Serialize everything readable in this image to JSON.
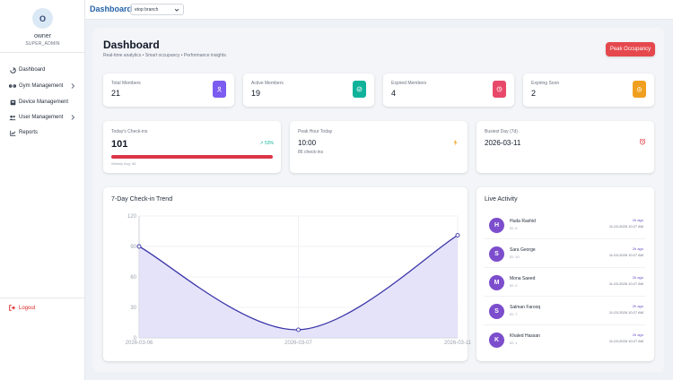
{
  "user": {
    "initial": "O",
    "name": "owner",
    "role": "SUPER_ADMIN"
  },
  "nav": {
    "items": [
      {
        "label": "Dashboard",
        "icon": "dashboard-icon",
        "has_submenu": false
      },
      {
        "label": "Gym Management",
        "icon": "dumbbell-icon",
        "has_submenu": true
      },
      {
        "label": "Device Management",
        "icon": "device-icon",
        "has_submenu": false
      },
      {
        "label": "User Management",
        "icon": "users-icon",
        "has_submenu": true
      },
      {
        "label": "Reports",
        "icon": "chart-icon",
        "has_submenu": false
      }
    ],
    "logout": "Logout"
  },
  "topbar": {
    "title": "Dashboard",
    "branch_select": "etop branch"
  },
  "header": {
    "title": "Dashboard",
    "subtitle": "Real-time analytics • Smart occupancy • Performance insights",
    "peak_button": "Peak Occupancy"
  },
  "stats": [
    {
      "label": "Total Members",
      "value": "21",
      "color": "#7c5cf0",
      "icon": "user-icon"
    },
    {
      "label": "Active Members",
      "value": "19",
      "color": "#10b39a",
      "icon": "check-circle-icon"
    },
    {
      "label": "Expired Members",
      "value": "4",
      "color": "#e8496a",
      "icon": "clock-icon"
    },
    {
      "label": "Expiring Soon",
      "value": "2",
      "color": "#f0a020",
      "icon": "alarm-icon"
    }
  ],
  "checkins": {
    "label": "Today's Check-ins",
    "value": "101",
    "trend": "↗ 53%",
    "progress": 1.0,
    "caption": "Weekly Avg: 66"
  },
  "peak_hour": {
    "label": "Peak Hour Today",
    "value": "10:00",
    "caption": "86 check-ins"
  },
  "busiest_day": {
    "label": "Busiest Day (7d)",
    "value": "2026-03-11"
  },
  "trend_chart": {
    "title": "7-Day Check-in Trend"
  },
  "chart_data": {
    "type": "area",
    "title": "7-Day Check-in Trend",
    "x": [
      "2026-03-06",
      "2026-03-07",
      "2026-03-11"
    ],
    "values": [
      90,
      8,
      101
    ],
    "ylim": [
      0,
      120
    ],
    "yticks": [
      0,
      30,
      60,
      90,
      120
    ],
    "grid": true,
    "line_color": "#3b36a8",
    "fill_color": "#dcdaf7"
  },
  "activity": {
    "title": "Live Activity",
    "items": [
      {
        "initial": "H",
        "name": "Huda Rashid",
        "id": "ID: 6",
        "ago": "2h ago",
        "time": "11-03-2026 10:27 AM"
      },
      {
        "initial": "S",
        "name": "Sara George",
        "id": "ID: 10",
        "ago": "2h ago",
        "time": "11-03-2026 10:27 AM"
      },
      {
        "initial": "M",
        "name": "Mona Saeed",
        "id": "ID: 2",
        "ago": "2h ago",
        "time": "11-03-2026 10:27 AM"
      },
      {
        "initial": "S",
        "name": "Salman Farooq",
        "id": "ID: 7",
        "ago": "2h ago",
        "time": "11-03-2026 10:27 AM"
      },
      {
        "initial": "K",
        "name": "Khaled Hassan",
        "id": "ID: 1",
        "ago": "2h ago",
        "time": "11-03-2026 10:27 AM"
      }
    ]
  }
}
